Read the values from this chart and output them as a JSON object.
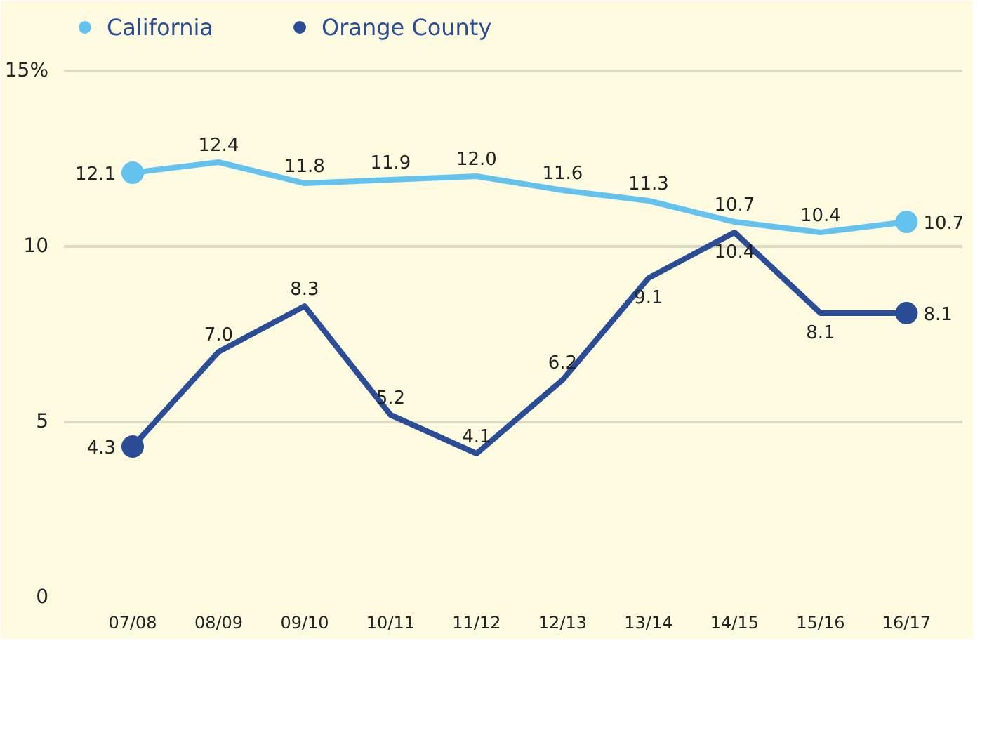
{
  "chart_data": {
    "type": "line",
    "categories": [
      "07/08",
      "08/09",
      "09/10",
      "10/11",
      "11/12",
      "12/13",
      "13/14",
      "14/15",
      "15/16",
      "16/17"
    ],
    "series": [
      {
        "name": "California",
        "color": "#63c3ee",
        "values": [
          12.1,
          12.4,
          11.8,
          11.9,
          12.0,
          11.6,
          11.3,
          10.7,
          10.4,
          10.7
        ],
        "value_labels": [
          "12.1",
          "12.4",
          "11.8",
          "11.9",
          "12.0",
          "11.6",
          "11.3",
          "10.7",
          "10.4",
          "10.7"
        ]
      },
      {
        "name": "Orange County",
        "color": "#2a4d96",
        "values": [
          4.3,
          7.0,
          8.3,
          5.2,
          4.1,
          6.2,
          9.1,
          10.4,
          8.1,
          8.1
        ],
        "value_labels": [
          "4.3",
          "7.0",
          "8.3",
          "5.2",
          "4.1",
          "6.2",
          "9.1",
          "10.4",
          "8.1",
          "8.1"
        ]
      }
    ],
    "ylim": [
      0,
      16.8
    ],
    "yticks": [
      0,
      5,
      10,
      {
        "value": 15,
        "label": "15%"
      }
    ],
    "grid": "y",
    "legend": "top left",
    "line_style": "solid"
  }
}
